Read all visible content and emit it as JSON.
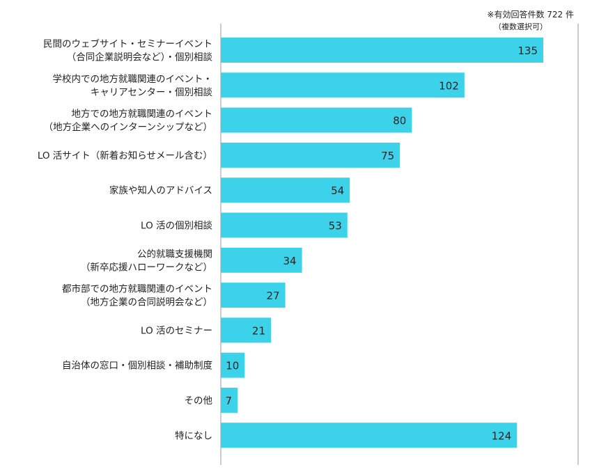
{
  "note": {
    "respondents": "※有効回答件数 722 件",
    "multi": "（複数選択可）"
  },
  "colors": {
    "bar": "#3cd3ea",
    "axis": "#999999",
    "text": "#222222"
  },
  "chart_data": {
    "type": "bar",
    "orientation": "horizontal",
    "categories": [
      [
        "民間のウェブサイト・セミナーイベント",
        "（合同企業説明会など）・個別相談"
      ],
      [
        "学校内での地方就職関連のイベント・",
        "キャリアセンター・個別相談"
      ],
      [
        "地方での地方就職関連のイベント",
        "（地方企業へのインターンシップなど）"
      ],
      [
        "LO 活サイト（新着お知らせメール含む）"
      ],
      [
        "家族や知人のアドバイス"
      ],
      [
        "LO 活の個別相談"
      ],
      [
        "公的就職支援機関",
        "（新卒応援ハローワークなど）"
      ],
      [
        "都市部での地方就職関連のイベント",
        "（地方企業の合同説明会など）"
      ],
      [
        "LO 活のセミナー"
      ],
      [
        "自治体の窓口・個別相談・補助制度"
      ],
      [
        "その他"
      ],
      [
        "特になし"
      ]
    ],
    "values": [
      135,
      102,
      80,
      75,
      54,
      53,
      34,
      27,
      21,
      10,
      7,
      124
    ],
    "xlim": [
      0,
      150
    ],
    "grid": false,
    "title": "",
    "xlabel": "",
    "ylabel": ""
  }
}
